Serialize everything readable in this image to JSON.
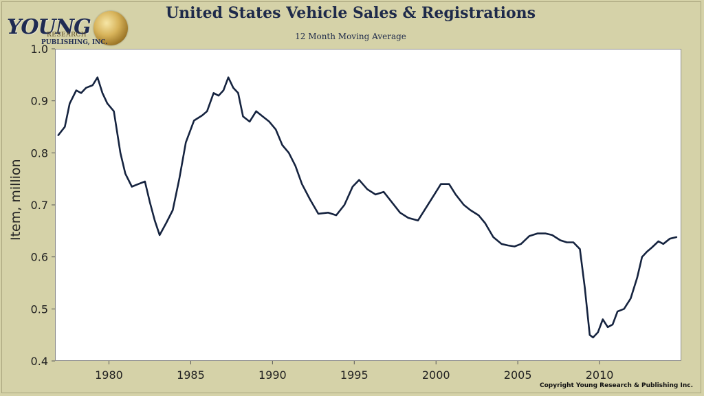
{
  "logo": {
    "name": "YOUNG",
    "line1": "RESEARCH",
    "line2": "PUBLISHING, INC.",
    "icon": "globe-icon"
  },
  "header": {
    "title": "United States Vehicle Sales & Registrations",
    "subtitle": "12 Month Moving Average"
  },
  "footer": {
    "copyright": "Copyright Young Research & Publishing Inc."
  },
  "colors": {
    "background": "#d5d2a8",
    "plot_background": "#ffffff",
    "line": "#15233f"
  },
  "chart_data": {
    "type": "line",
    "title": "United States Vehicle Sales & Registrations",
    "subtitle": "12 Month Moving Average",
    "xlabel": "",
    "ylabel": "Item, million",
    "xlim": [
      1976.7,
      2015.0
    ],
    "ylim": [
      0.4,
      1.0
    ],
    "xticks": [
      1980,
      1985,
      1990,
      1995,
      2000,
      2005,
      2010
    ],
    "yticks": [
      0.4,
      0.5,
      0.6,
      0.7,
      0.8,
      0.9,
      1.0
    ],
    "ytick_labels": [
      "0.4",
      "0.5",
      "0.6",
      "0.7",
      "0.8",
      "0.9",
      "1.0"
    ],
    "grid": false,
    "legend": "none",
    "series": [
      {
        "x": [
          1976.9,
          1977.3,
          1977.6,
          1978.0,
          1978.3,
          1978.6,
          1979.0,
          1979.3,
          1979.6,
          1979.9,
          1980.3,
          1980.7,
          1981.0,
          1981.4,
          1981.8,
          1982.2,
          1982.5,
          1982.8,
          1983.1,
          1983.5,
          1983.9,
          1984.3,
          1984.7,
          1985.2,
          1985.7,
          1986.0,
          1986.4,
          1986.7,
          1987.0,
          1987.3,
          1987.6,
          1987.9,
          1988.2,
          1988.6,
          1989.0,
          1989.4,
          1989.8,
          1990.2,
          1990.6,
          1991.0,
          1991.4,
          1991.8,
          1992.3,
          1992.8,
          1993.4,
          1993.9,
          1994.4,
          1994.9,
          1995.3,
          1995.8,
          1996.3,
          1996.8,
          1997.3,
          1997.8,
          1998.3,
          1998.9,
          1999.4,
          1999.9,
          2000.3,
          2000.8,
          2001.2,
          2001.7,
          2002.1,
          2002.6,
          2003.0,
          2003.5,
          2004.0,
          2004.4,
          2004.8,
          2005.2,
          2005.7,
          2006.2,
          2006.7,
          2007.1,
          2007.6,
          2008.0,
          2008.4,
          2008.8,
          2009.1,
          2009.4,
          2009.6,
          2009.9,
          2010.2,
          2010.5,
          2010.8,
          2011.1,
          2011.5,
          2011.9,
          2012.3,
          2012.6,
          2012.9,
          2013.2,
          2013.6,
          2013.9,
          2014.3,
          2014.7
        ],
        "y": [
          0.834,
          0.85,
          0.895,
          0.92,
          0.915,
          0.925,
          0.93,
          0.945,
          0.915,
          0.895,
          0.88,
          0.8,
          0.76,
          0.735,
          0.74,
          0.745,
          0.705,
          0.67,
          0.642,
          0.665,
          0.69,
          0.75,
          0.82,
          0.862,
          0.872,
          0.88,
          0.915,
          0.91,
          0.92,
          0.945,
          0.925,
          0.915,
          0.87,
          0.86,
          0.88,
          0.87,
          0.86,
          0.845,
          0.815,
          0.8,
          0.775,
          0.74,
          0.71,
          0.683,
          0.685,
          0.68,
          0.7,
          0.735,
          0.748,
          0.73,
          0.72,
          0.725,
          0.705,
          0.685,
          0.675,
          0.67,
          0.695,
          0.72,
          0.74,
          0.74,
          0.72,
          0.7,
          0.69,
          0.68,
          0.665,
          0.638,
          0.625,
          0.622,
          0.62,
          0.625,
          0.64,
          0.645,
          0.645,
          0.642,
          0.632,
          0.628,
          0.628,
          0.615,
          0.54,
          0.45,
          0.445,
          0.455,
          0.48,
          0.465,
          0.47,
          0.495,
          0.5,
          0.52,
          0.56,
          0.6,
          0.61,
          0.618,
          0.63,
          0.625,
          0.635,
          0.638
        ]
      }
    ]
  }
}
